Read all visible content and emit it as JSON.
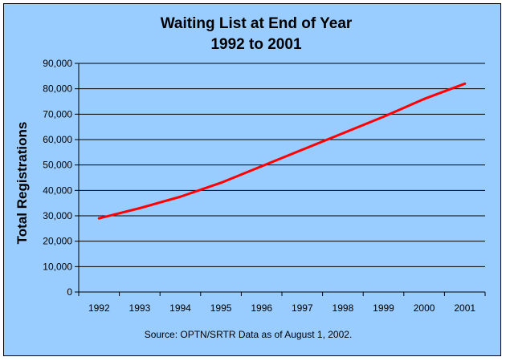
{
  "chart_data": {
    "type": "line",
    "title": [
      "Waiting List at End of Year",
      "1992 to 2001"
    ],
    "xlabel": "",
    "ylabel": "Total Registrations",
    "categories": [
      "1992",
      "1993",
      "1994",
      "1995",
      "1996",
      "1997",
      "1998",
      "1999",
      "2000",
      "2001"
    ],
    "series": [
      {
        "values": [
          29000,
          33000,
          37500,
          43000,
          49500,
          56000,
          62500,
          69000,
          76000,
          82000
        ],
        "color": "#ff0000"
      }
    ],
    "ylim": [
      0,
      90000
    ],
    "yticks": [
      0,
      10000,
      20000,
      30000,
      40000,
      50000,
      60000,
      70000,
      80000,
      90000
    ],
    "ytick_labels": [
      "0",
      "10,000",
      "20,000",
      "30,000",
      "40,000",
      "50,000",
      "60,000",
      "70,000",
      "80,000",
      "90,000"
    ],
    "grid": true,
    "legend": "none",
    "source": "Source:  OPTN/SRTR Data as of August 1, 2002.",
    "background_color": "#99ccff",
    "grid_color": "#000000"
  }
}
